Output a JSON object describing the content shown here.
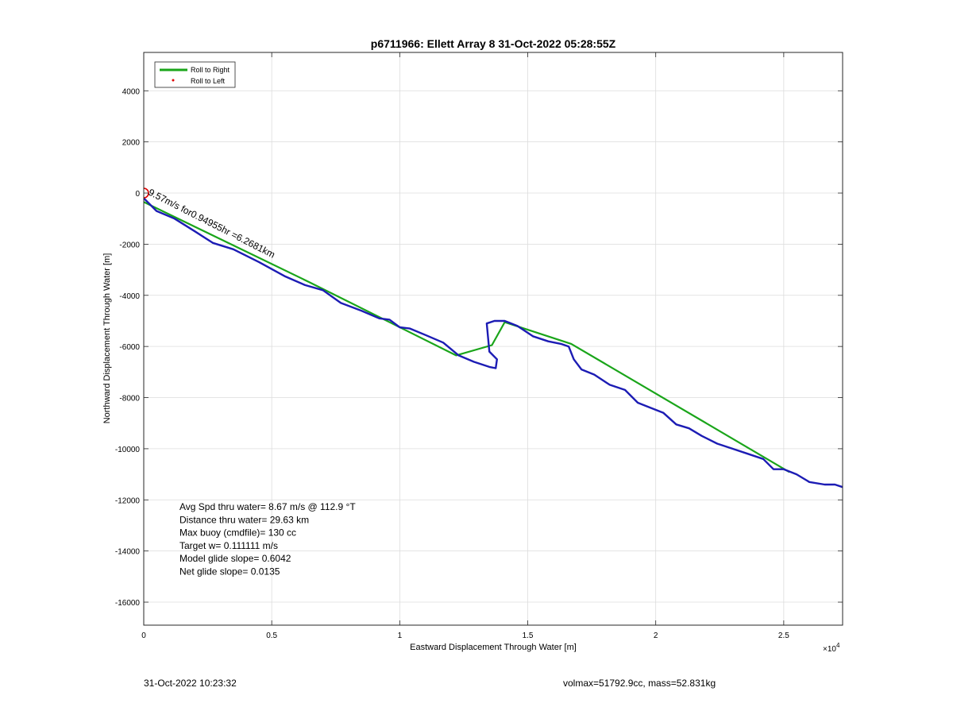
{
  "chart_data": {
    "type": "line",
    "title": "p6711966: Ellett Array 8 31-Oct-2022 05:28:55Z",
    "xlabel": "Eastward Displacement Through Water [m]",
    "ylabel": "Northward Displacement Through Water [m]",
    "x_exponent_label": "×10^4",
    "xlim": [
      0,
      27300
    ],
    "ylim": [
      -16900,
      5500
    ],
    "x_ticks": [
      0,
      5000,
      10000,
      15000,
      20000,
      25000
    ],
    "x_tick_labels": [
      "0",
      "0.5",
      "1",
      "1.5",
      "2",
      "2.5"
    ],
    "y_ticks": [
      -16000,
      -14000,
      -12000,
      -10000,
      -8000,
      -6000,
      -4000,
      -2000,
      0,
      2000,
      4000
    ],
    "y_tick_labels": [
      "-16000",
      "-14000",
      "-12000",
      "-10000",
      "-8000",
      "-6000",
      "-4000",
      "-2000",
      "0",
      "2000",
      "4000"
    ],
    "grid": true,
    "legend_position": "top-left",
    "legend": [
      {
        "label": "Roll to Right",
        "color": "#1aa51a",
        "style": "line"
      },
      {
        "label": "Roll to Left",
        "color": "#e00000",
        "style": "dot"
      }
    ],
    "series": [
      {
        "color": "#1aa51a",
        "x": [
          0,
          6500,
          12200,
          13600,
          14100,
          16700,
          25200
        ],
        "y": [
          -350,
          -3500,
          -6350,
          -5950,
          -5050,
          -5900,
          -10900
        ]
      },
      {
        "color": "#1c1cb4",
        "x": [
          0,
          500,
          1200,
          2000,
          2700,
          3500,
          4500,
          5500,
          6300,
          7000,
          7700,
          8500,
          9200,
          9600,
          10000,
          10400,
          11000,
          11700,
          12300,
          12900,
          13500,
          13750,
          13800,
          13500,
          13400,
          13700,
          14100,
          14600,
          15200,
          15800,
          16300,
          16600,
          16800,
          17100,
          17600,
          18200,
          18800,
          19300,
          19800,
          20300,
          20800,
          21300,
          21800,
          22400,
          23000,
          23600,
          24200,
          24600,
          25000,
          25500,
          26000,
          26600,
          27000,
          27300
        ],
        "y": [
          -200,
          -700,
          -1000,
          -1500,
          -1950,
          -2200,
          -2700,
          -3250,
          -3600,
          -3800,
          -4300,
          -4600,
          -4900,
          -4950,
          -5250,
          -5300,
          -5550,
          -5850,
          -6350,
          -6600,
          -6800,
          -6850,
          -6500,
          -6200,
          -5100,
          -5000,
          -5000,
          -5200,
          -5600,
          -5800,
          -5900,
          -6000,
          -6500,
          -6900,
          -7100,
          -7500,
          -7700,
          -8200,
          -8400,
          -8600,
          -9050,
          -9200,
          -9500,
          -9800,
          -10000,
          -10200,
          -10400,
          -10800,
          -10800,
          -11000,
          -11300,
          -11400,
          -11400,
          -11500
        ]
      }
    ],
    "markers": [
      {
        "x": 0,
        "y": 0,
        "color": "#e00000",
        "style": "circle"
      }
    ],
    "annotations": [
      {
        "text": "9.57m/s for0.94955hr =6.2681km",
        "x": 150,
        "y": -50
      }
    ],
    "stats_lines": [
      "Avg Spd thru water=  8.67 m/s @ 112.9 °T",
      "Distance thru water= 29.63 km",
      "Max buoy (cmdfile)= 130 cc",
      "Target w= 0.111111 m/s",
      "Model glide slope= 0.6042",
      "Net glide slope= 0.0135"
    ]
  },
  "footer": {
    "left": "31-Oct-2022 10:23:32",
    "right": "volmax=51792.9cc, mass=52.831kg"
  }
}
